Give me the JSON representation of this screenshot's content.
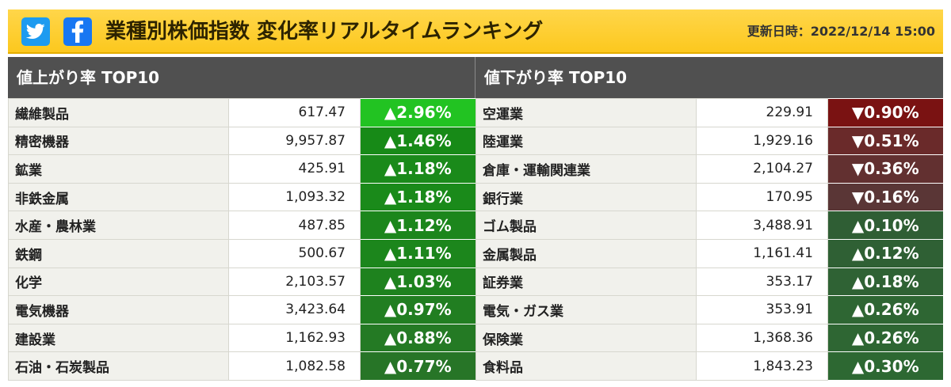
{
  "header": {
    "title": "業種別株価指数 変化率リアルタイムランキング",
    "updated_label": "更新日時：",
    "updated_value": "2022/12/14 15:00",
    "share_icons": [
      "twitter-icon",
      "facebook-icon"
    ]
  },
  "colors": {
    "header_bg": "#fcc81e",
    "section_header_bg": "#505050",
    "up_strong": "#22c322",
    "up": "#1a8f1a",
    "up_weak": "#276a27",
    "down_strong": "#7a1010",
    "down": "#6b2727",
    "down_weak": "#5c3333",
    "up_from_loss_table": "#2f6a33"
  },
  "gainers": {
    "title": "値上がり率 TOP10",
    "rows": [
      {
        "name": "繊維製品",
        "value": "617.47",
        "change": "▲2.96%",
        "color": "#22c322"
      },
      {
        "name": "精密機器",
        "value": "9,957.87",
        "change": "▲1.46%",
        "color": "#178a17"
      },
      {
        "name": "鉱業",
        "value": "425.91",
        "change": "▲1.18%",
        "color": "#1a8a1a"
      },
      {
        "name": "非鉄金属",
        "value": "1,093.32",
        "change": "▲1.18%",
        "color": "#1a8a1a"
      },
      {
        "name": "水産・農林業",
        "value": "487.85",
        "change": "▲1.12%",
        "color": "#1c861c"
      },
      {
        "name": "鉄鋼",
        "value": "500.67",
        "change": "▲1.11%",
        "color": "#1c861c"
      },
      {
        "name": "化学",
        "value": "2,103.57",
        "change": "▲1.03%",
        "color": "#1e821e"
      },
      {
        "name": "電気機器",
        "value": "3,423.64",
        "change": "▲0.97%",
        "color": "#217e21"
      },
      {
        "name": "建設業",
        "value": "1,162.93",
        "change": "▲0.88%",
        "color": "#247a24"
      },
      {
        "name": "石油・石炭製品",
        "value": "1,082.58",
        "change": "▲0.77%",
        "color": "#277527"
      }
    ]
  },
  "losers": {
    "title": "値下がり率 TOP10",
    "rows": [
      {
        "name": "空運業",
        "value": "229.91",
        "change": "▼0.90%",
        "color": "#7a1212"
      },
      {
        "name": "陸運業",
        "value": "1,929.16",
        "change": "▼0.51%",
        "color": "#6a2a2a"
      },
      {
        "name": "倉庫・運輸関連業",
        "value": "2,104.27",
        "change": "▼0.36%",
        "color": "#623030"
      },
      {
        "name": "銀行業",
        "value": "170.95",
        "change": "▼0.16%",
        "color": "#5a3636"
      },
      {
        "name": "ゴム製品",
        "value": "3,488.91",
        "change": "▲0.10%",
        "color": "#2f5e34"
      },
      {
        "name": "金属製品",
        "value": "1,161.41",
        "change": "▲0.12%",
        "color": "#2f6034"
      },
      {
        "name": "証券業",
        "value": "353.17",
        "change": "▲0.18%",
        "color": "#2f6234"
      },
      {
        "name": "電気・ガス業",
        "value": "353.91",
        "change": "▲0.26%",
        "color": "#2e6633"
      },
      {
        "name": "保険業",
        "value": "1,368.36",
        "change": "▲0.26%",
        "color": "#2e6633"
      },
      {
        "name": "食料品",
        "value": "1,843.23",
        "change": "▲0.30%",
        "color": "#2d6832"
      }
    ]
  }
}
